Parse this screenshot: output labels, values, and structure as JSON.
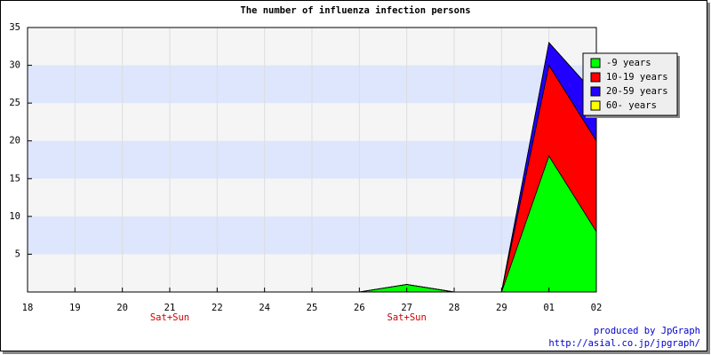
{
  "chart_data": {
    "type": "stacked-area",
    "title": "The number of influenza infection persons",
    "categories": [
      "18",
      "19",
      "20",
      "21",
      "22",
      "24",
      "25",
      "26",
      "27",
      "28",
      "29",
      "01",
      "02"
    ],
    "category_notes": [
      null,
      null,
      null,
      "Sat+Sun",
      null,
      null,
      null,
      null,
      "Sat+Sun",
      null,
      null,
      null,
      null
    ],
    "series": [
      {
        "name": "-9 years",
        "color": "#00ff00",
        "values": [
          0,
          0,
          0,
          0,
          0,
          0,
          0,
          0,
          1,
          0,
          0,
          18,
          8
        ]
      },
      {
        "name": "10-19 years",
        "color": "#ff0000",
        "values": [
          0,
          0,
          0,
          0,
          0,
          0,
          0,
          0,
          0,
          0,
          0,
          12,
          12
        ]
      },
      {
        "name": "20-59 years",
        "color": "#2200ff",
        "values": [
          0,
          0,
          0,
          0,
          0,
          0,
          0,
          0,
          0,
          0,
          0,
          3,
          6
        ]
      },
      {
        "name": "60- years",
        "color": "#ffff00",
        "values": [
          0,
          0,
          0,
          0,
          0,
          0,
          0,
          0,
          0,
          0,
          0,
          0,
          0
        ]
      }
    ],
    "ylim": [
      0,
      35
    ],
    "yticks": [
      5,
      10,
      15,
      20,
      25,
      30,
      35
    ],
    "grid": true,
    "legend": "top-right",
    "credits": [
      "produced by JpGraph",
      "http://asial.co.jp/jpgraph/"
    ]
  }
}
